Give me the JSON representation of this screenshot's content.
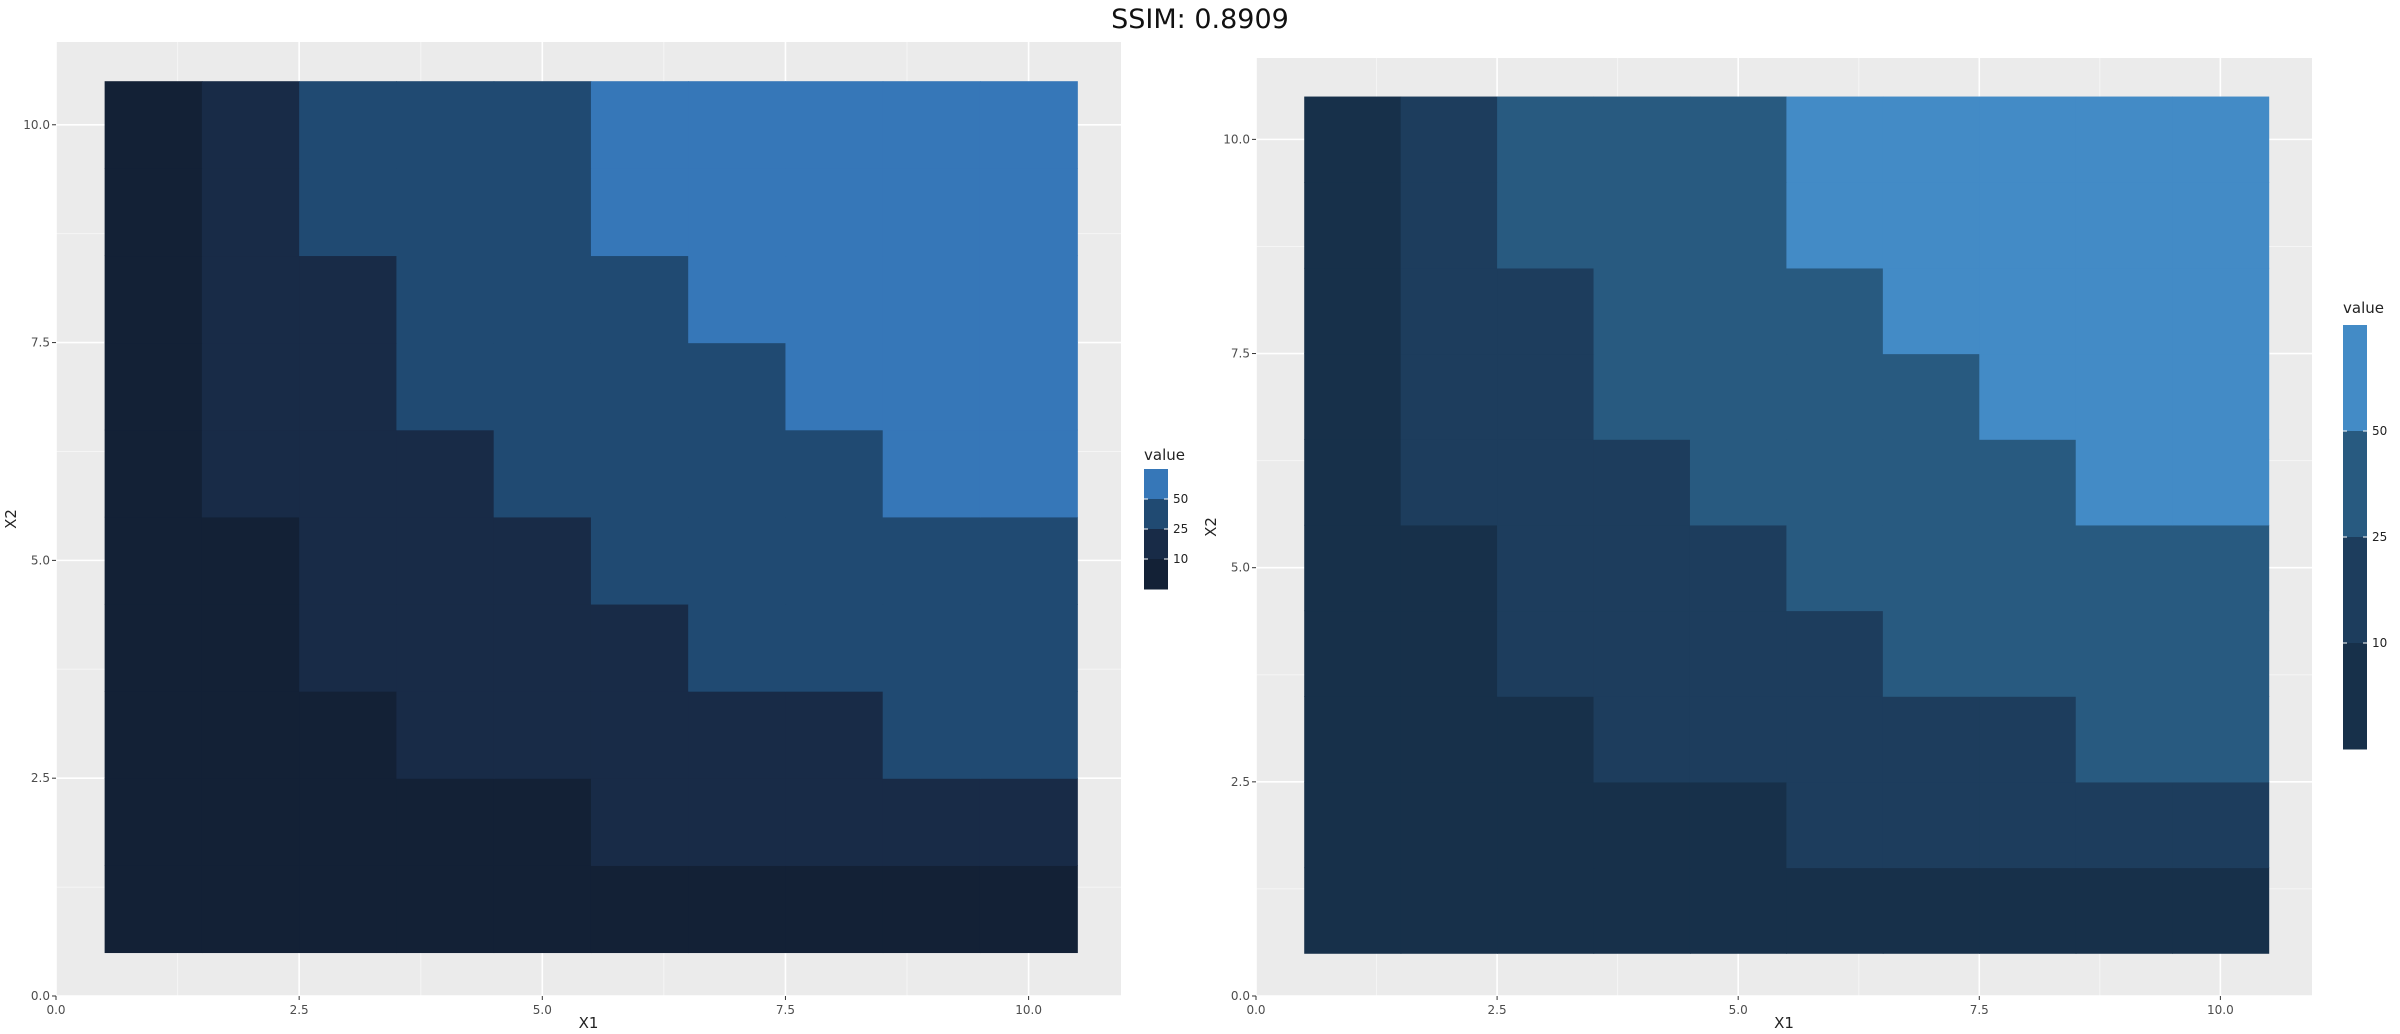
{
  "header": {
    "title": "SSIM: 0.8909"
  },
  "chart_data": [
    {
      "type": "heatmap",
      "title": "",
      "xlabel": "X1",
      "ylabel": "X2",
      "xlim": [
        0,
        10.95
      ],
      "ylim": [
        0,
        10.95
      ],
      "x_ticks": [
        0.0,
        2.5,
        5.0,
        7.5,
        10.0
      ],
      "x_tick_labels": [
        "0.0",
        "2.5",
        "5.0",
        "7.5",
        "10.0"
      ],
      "y_ticks": [
        0.0,
        2.5,
        5.0,
        7.5,
        10.0
      ],
      "y_tick_labels": [
        "0.0",
        "2.5",
        "5.0",
        "7.5",
        "10.0"
      ],
      "x": [
        1,
        2,
        3,
        4,
        5,
        6,
        7,
        8,
        9,
        10
      ],
      "y": [
        1,
        2,
        3,
        4,
        5,
        6,
        7,
        8,
        9,
        10
      ],
      "values": [
        [
          1,
          2,
          3,
          4,
          5,
          6,
          7,
          8,
          9,
          10
        ],
        [
          2,
          4,
          6,
          8,
          10,
          12,
          14,
          16,
          18,
          20
        ],
        [
          3,
          6,
          9,
          12,
          15,
          18,
          21,
          24,
          27,
          30
        ],
        [
          4,
          8,
          12,
          16,
          20,
          24,
          28,
          32,
          36,
          40
        ],
        [
          5,
          10,
          15,
          20,
          25,
          30,
          35,
          40,
          45,
          50
        ],
        [
          6,
          12,
          18,
          24,
          30,
          36,
          42,
          48,
          54,
          60
        ],
        [
          7,
          14,
          21,
          28,
          35,
          42,
          49,
          56,
          63,
          70
        ],
        [
          8,
          16,
          24,
          32,
          40,
          48,
          56,
          64,
          72,
          80
        ],
        [
          9,
          18,
          27,
          36,
          45,
          54,
          63,
          72,
          81,
          90
        ],
        [
          10,
          20,
          30,
          40,
          50,
          60,
          70,
          80,
          90,
          100
        ]
      ],
      "bins": [
        {
          "max": 10,
          "color": "#132136"
        },
        {
          "max": 25,
          "color": "#182b47"
        },
        {
          "max": 50,
          "color": "#204a72"
        },
        {
          "max": 1000,
          "color": "#3677b8"
        }
      ],
      "legend": {
        "title": "value",
        "breaks": [
          10,
          25,
          50
        ],
        "labels": [
          "10",
          "25",
          "50"
        ],
        "placement": "right"
      }
    },
    {
      "type": "heatmap",
      "title": "",
      "xlabel": "X1",
      "ylabel": "X2",
      "xlim": [
        0,
        10.95
      ],
      "ylim": [
        0,
        10.95
      ],
      "x_ticks": [
        0.0,
        2.5,
        5.0,
        7.5,
        10.0
      ],
      "x_tick_labels": [
        "0.0",
        "2.5",
        "5.0",
        "7.5",
        "10.0"
      ],
      "y_ticks": [
        0.0,
        2.5,
        5.0,
        7.5,
        10.0
      ],
      "y_tick_labels": [
        "0.0",
        "2.5",
        "5.0",
        "7.5",
        "10.0"
      ],
      "x": [
        1,
        2,
        3,
        4,
        5,
        6,
        7,
        8,
        9,
        10
      ],
      "y": [
        1,
        2,
        3,
        4,
        5,
        6,
        7,
        8,
        9,
        10
      ],
      "values": [
        [
          1,
          2,
          3,
          4,
          5,
          6,
          7,
          8,
          9,
          10
        ],
        [
          2,
          4,
          6,
          8,
          10,
          12,
          14,
          16,
          18,
          20
        ],
        [
          3,
          6,
          9,
          12,
          15,
          18,
          21,
          24,
          27,
          30
        ],
        [
          4,
          8,
          12,
          16,
          20,
          24,
          28,
          32,
          36,
          40
        ],
        [
          5,
          10,
          15,
          20,
          25,
          30,
          35,
          40,
          45,
          50
        ],
        [
          6,
          12,
          18,
          24,
          30,
          36,
          42,
          48,
          54,
          60
        ],
        [
          7,
          14,
          21,
          28,
          35,
          42,
          49,
          56,
          63,
          70
        ],
        [
          8,
          16,
          24,
          32,
          40,
          48,
          56,
          64,
          72,
          80
        ],
        [
          9,
          18,
          27,
          36,
          45,
          54,
          63,
          72,
          81,
          90
        ],
        [
          10,
          20,
          30,
          40,
          50,
          60,
          70,
          80,
          90,
          100
        ]
      ],
      "bins": [
        {
          "max": 10,
          "color": "#17304a"
        },
        {
          "max": 25,
          "color": "#1d3d5d"
        },
        {
          "max": 50,
          "color": "#285a80"
        },
        {
          "max": 1000,
          "color": "#438bc6"
        }
      ],
      "legend": {
        "title": "value",
        "breaks": [
          10,
          25,
          50
        ],
        "labels": [
          "10",
          "25",
          "50"
        ],
        "placement": "right"
      }
    }
  ]
}
